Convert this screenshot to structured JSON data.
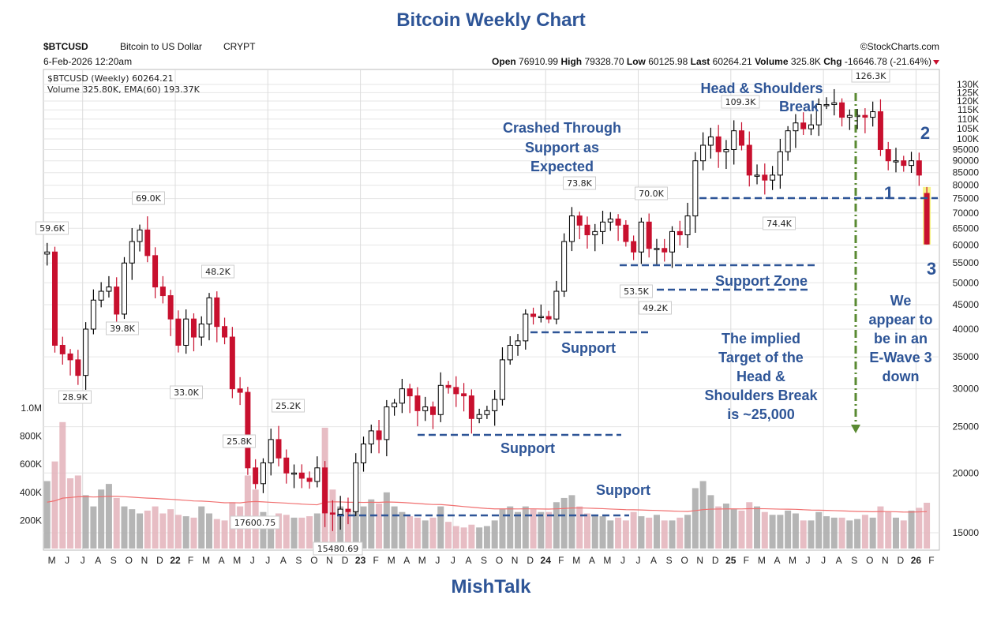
{
  "title": "Bitcoin Weekly Chart",
  "footer": "MishTalk",
  "header": {
    "symbol": "$BTCUSD",
    "name": "Bitcoin to US Dollar",
    "exchange": "CRYPT",
    "copyright": "©StockCharts.com",
    "date": "6-Feb-2026 12:20am",
    "open_label": "Open",
    "open": "76910.99",
    "high_label": "High",
    "high": "79328.70",
    "low_label": "Low",
    "low": "60125.98",
    "last_label": "Last",
    "last": "60264.21",
    "volume_label": "Volume",
    "volume": "325.8K",
    "chg_label": "Chg",
    "chg": "-16646.78 (-21.64%)"
  },
  "legend": {
    "price": "$BTCUSD (Weekly) 60264.21",
    "volume": "Volume 325.80K, EMA(60) 193.37K"
  },
  "colors": {
    "up": "#000000",
    "down": "#c8102e",
    "vol_up": "#a8a8a8",
    "vol_down": "#e3b2ba",
    "ema": "#f07070",
    "annotation": "#2e5597",
    "target": "#5a8a32",
    "highlight": "#f5f06a"
  },
  "annotations": {
    "hs1": "Head & Shoulders",
    "hs2": "Break",
    "crash1": "Crashed Through",
    "crash2": "Support as",
    "crash3": "Expected",
    "zone": "Support Zone",
    "support1": "Support",
    "support2": "Support",
    "support3": "Support",
    "target": [
      "The implied",
      "Target of the",
      "Head &",
      "Shoulders Break",
      "is ~25,000"
    ],
    "wave": [
      "We",
      "appear to",
      "be in an",
      "E-Wave 3",
      "down"
    ],
    "w1": "1",
    "w2": "2",
    "w3": "3"
  },
  "peak_labels": [
    "59.6K",
    "69.0K",
    "39.8K",
    "28.9K",
    "48.2K",
    "33.0K",
    "25.8K",
    "25.2K",
    "17600.75",
    "15480.69",
    "73.8K",
    "70.0K",
    "53.5K",
    "49.2K",
    "109.3K",
    "74.4K",
    "126.3K"
  ],
  "chart_data": {
    "type": "candlestick",
    "scale": "log",
    "ylim": [
      14000,
      135000
    ],
    "price_ticks": [
      "130K",
      "125K",
      "120K",
      "115K",
      "110K",
      "105K",
      "100K",
      "95000",
      "90000",
      "85000",
      "80000",
      "75000",
      "70000",
      "65000",
      "60000",
      "55000",
      "50000",
      "45000",
      "40000",
      "35000",
      "30000",
      "25000",
      "20000",
      "15000"
    ],
    "volume_ticks": [
      "1.0M",
      "800K",
      "600K",
      "400K",
      "200K"
    ],
    "x_ticks": [
      "M",
      "J",
      "J",
      "A",
      "S",
      "O",
      "N",
      "D",
      "22",
      "F",
      "M",
      "A",
      "M",
      "J",
      "J",
      "A",
      "S",
      "O",
      "N",
      "D",
      "23",
      "F",
      "M",
      "A",
      "M",
      "J",
      "J",
      "A",
      "S",
      "O",
      "N",
      "D",
      "24",
      "F",
      "M",
      "A",
      "M",
      "J",
      "J",
      "A",
      "S",
      "O",
      "N",
      "D",
      "25",
      "F",
      "M",
      "A",
      "M",
      "J",
      "J",
      "A",
      "S",
      "O",
      "N",
      "D",
      "26",
      "F"
    ],
    "start": "2021-05",
    "period": "half-month",
    "closes": [
      58000,
      37000,
      35500,
      34500,
      32000,
      40000,
      46000,
      48000,
      49000,
      43000,
      55000,
      61000,
      64500,
      57000,
      49000,
      47000,
      42000,
      37000,
      42000,
      38500,
      41000,
      46500,
      40500,
      38500,
      30000,
      29500,
      20500,
      19000,
      21000,
      23500,
      21500,
      20000,
      20000,
      19500,
      19200,
      20500,
      16500,
      16400,
      16800,
      16600,
      21000,
      23000,
      24500,
      23500,
      27500,
      28000,
      30000,
      29000,
      27000,
      27500,
      26500,
      30500,
      30200,
      29300,
      29000,
      26000,
      26500,
      27000,
      28500,
      34500,
      37000,
      37800,
      43000,
      42500,
      42500,
      42000,
      48000,
      61000,
      69000,
      66000,
      63000,
      64000,
      67000,
      68000,
      66000,
      61000,
      58000,
      67000,
      59000,
      59000,
      58000,
      64000,
      63000,
      69000,
      90000,
      97000,
      101000,
      94000,
      95000,
      104000,
      97000,
      84000,
      84000,
      82000,
      84000,
      94000,
      104000,
      108000,
      105000,
      107000,
      118000,
      118000,
      119000,
      111000,
      112000,
      112000,
      111000,
      114000,
      95000,
      90000,
      90000,
      88000,
      90000,
      84000
    ],
    "last_candle": {
      "open": 76910.99,
      "high": 79328.7,
      "low": 60125.98,
      "close": 60264.21
    },
    "volumes_k": [
      480,
      620,
      900,
      500,
      520,
      380,
      300,
      420,
      460,
      360,
      300,
      280,
      250,
      270,
      300,
      250,
      280,
      240,
      230,
      220,
      300,
      250,
      210,
      200,
      330,
      300,
      520,
      420,
      260,
      230,
      250,
      240,
      220,
      220,
      230,
      250,
      860,
      420,
      300,
      260,
      330,
      300,
      350,
      320,
      400,
      300,
      260,
      230,
      220,
      200,
      220,
      300,
      190,
      160,
      150,
      170,
      150,
      160,
      200,
      280,
      300,
      260,
      300,
      280,
      260,
      260,
      330,
      360,
      380,
      300,
      250,
      240,
      230,
      200,
      220,
      200,
      260,
      230,
      220,
      240,
      200,
      200,
      220,
      240,
      430,
      480,
      380,
      300,
      320,
      280,
      270,
      330,
      300,
      260,
      240,
      240,
      270,
      250,
      200,
      200,
      260,
      230,
      220,
      220,
      200,
      210,
      240,
      220,
      300,
      260,
      220,
      200,
      270,
      290,
      326
    ],
    "ema_period": 60,
    "levels": {
      "neckline": 75000,
      "support_zone_top": 55000,
      "support_zone_bottom": 49000,
      "support_a": 39500,
      "support_b": 24000,
      "support_c": 16500,
      "target": 25000
    }
  }
}
